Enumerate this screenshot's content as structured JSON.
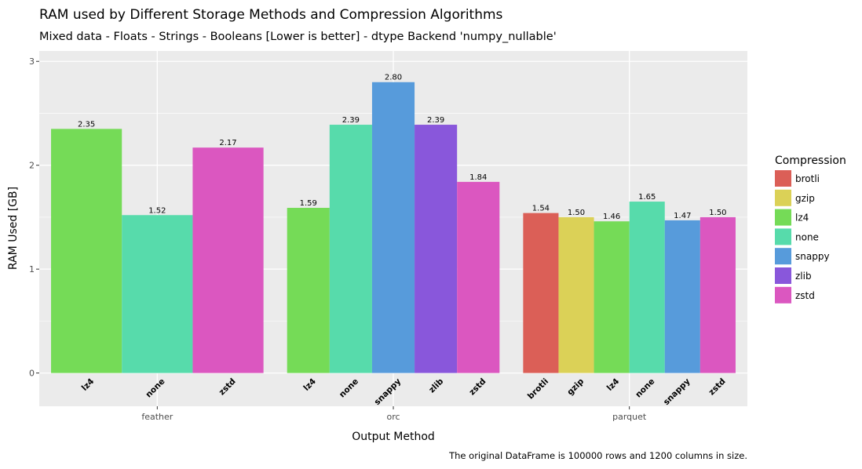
{
  "chart_data": {
    "type": "bar",
    "title": "RAM used by Different Storage Methods and Compression Algorithms",
    "subtitle": "Mixed data - Floats - Strings - Booleans [Lower is better] - dtype Backend 'numpy_nullable'",
    "xlabel": "Output Method",
    "ylabel": "RAM Used [GB]",
    "caption": "The original DataFrame is 100000 rows and 1200 columns in size.",
    "ylim": [
      -0.32,
      3.1
    ],
    "yticks": [
      0,
      1,
      2,
      3
    ],
    "yticklabels": [
      "0",
      "1",
      "2",
      "3"
    ],
    "grid": true,
    "legend": {
      "title": "Compression",
      "position": "right",
      "entries": [
        "brotli",
        "gzip",
        "lz4",
        "none",
        "snappy",
        "zlib",
        "zstd"
      ]
    },
    "colors": {
      "brotli": "#db5f57",
      "gzip": "#dbd157",
      "lz4": "#75db57",
      "none": "#57dbab",
      "snappy": "#579bdb",
      "zlib": "#8957db",
      "zstd": "#db57c0"
    },
    "groups": [
      {
        "name": "feather",
        "bars": [
          {
            "compression": "lz4",
            "value": 2.35,
            "label": "2.35"
          },
          {
            "compression": "none",
            "value": 1.52,
            "label": "1.52"
          },
          {
            "compression": "zstd",
            "value": 2.17,
            "label": "2.17"
          }
        ]
      },
      {
        "name": "orc",
        "bars": [
          {
            "compression": "lz4",
            "value": 1.59,
            "label": "1.59"
          },
          {
            "compression": "none",
            "value": 2.39,
            "label": "2.39"
          },
          {
            "compression": "snappy",
            "value": 2.8,
            "label": "2.80"
          },
          {
            "compression": "zlib",
            "value": 2.39,
            "label": "2.39"
          },
          {
            "compression": "zstd",
            "value": 1.84,
            "label": "1.84"
          }
        ]
      },
      {
        "name": "parquet",
        "bars": [
          {
            "compression": "brotli",
            "value": 1.54,
            "label": "1.54"
          },
          {
            "compression": "gzip",
            "value": 1.5,
            "label": "1.50"
          },
          {
            "compression": "lz4",
            "value": 1.46,
            "label": "1.46"
          },
          {
            "compression": "none",
            "value": 1.65,
            "label": "1.65"
          },
          {
            "compression": "snappy",
            "value": 1.47,
            "label": "1.47"
          },
          {
            "compression": "zstd",
            "value": 1.5,
            "label": "1.50"
          }
        ]
      }
    ]
  }
}
